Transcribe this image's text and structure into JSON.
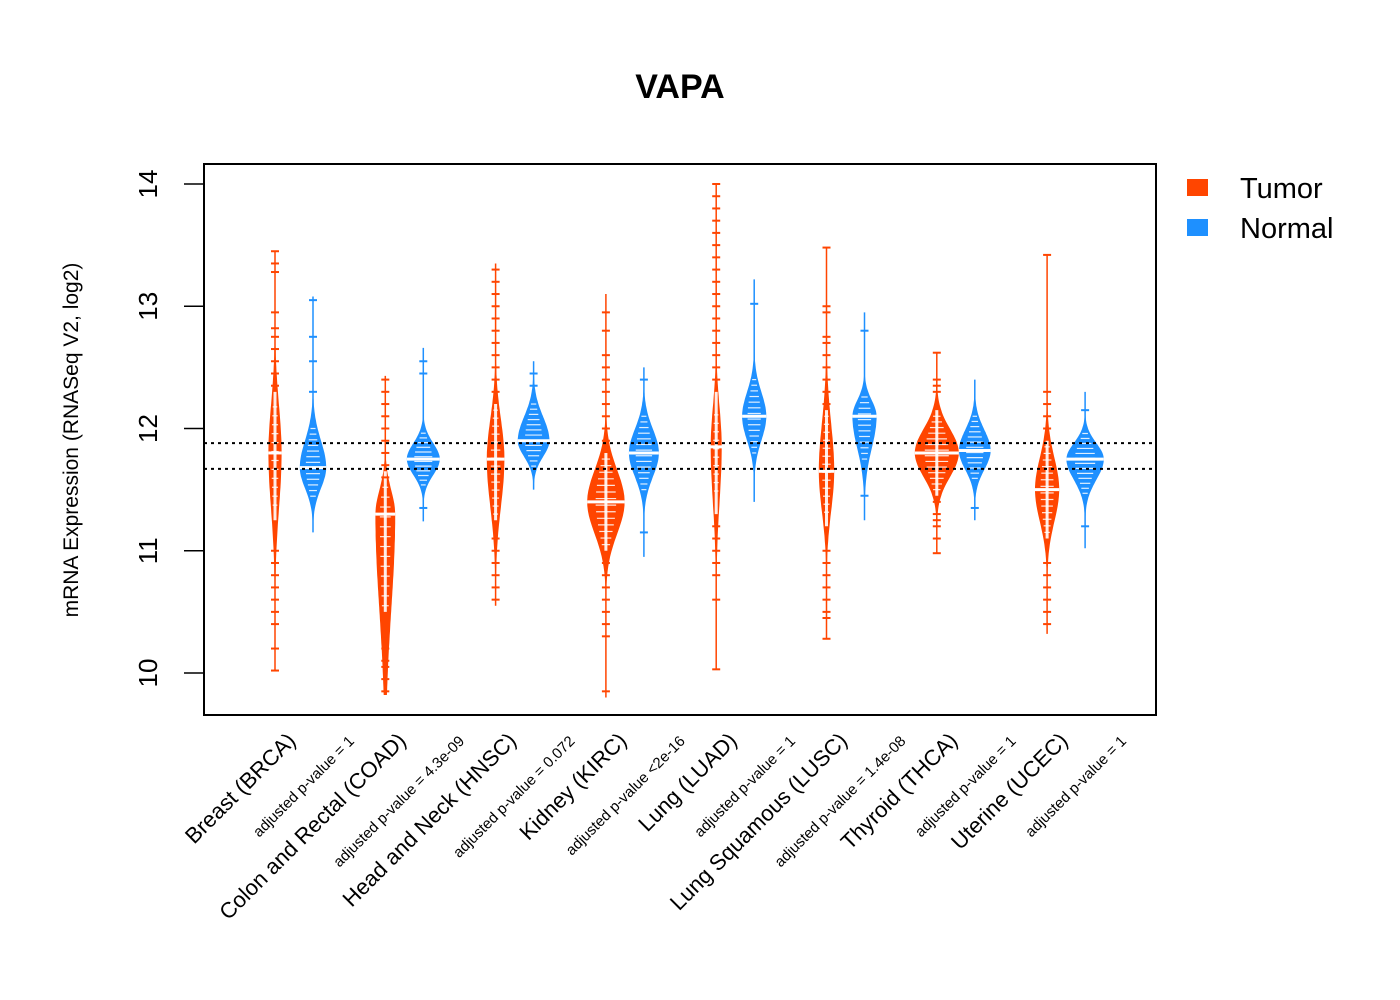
{
  "chart_data": {
    "type": "violin",
    "title": "VAPA",
    "xlabel": "",
    "ylabel": "mRNA Expression (RNASeq V2, log2)",
    "ylim": [
      9.67,
      14.16
    ],
    "yticks": [
      10,
      11,
      12,
      13,
      14
    ],
    "grid": false,
    "reference_lines": [
      11.88,
      11.67
    ],
    "legend": {
      "position": "top-right-outside",
      "entries": [
        {
          "label": "Tumor",
          "color": "#FF4500"
        },
        {
          "label": "Normal",
          "color": "#1E90FF"
        }
      ]
    },
    "categories": [
      {
        "name": "Breast (BRCA)",
        "pvalue_label": "adjusted p-value = 1"
      },
      {
        "name": "Colon and Rectal (COAD)",
        "pvalue_label": "adjusted p-value = 4.3e-09"
      },
      {
        "name": "Head and Neck (HNSC)",
        "pvalue_label": "adjusted p-value = 0.072"
      },
      {
        "name": "Kidney (KIRC)",
        "pvalue_label": "adjusted p-value <2e-16"
      },
      {
        "name": "Lung (LUAD)",
        "pvalue_label": "adjusted p-value = 1"
      },
      {
        "name": "Lung Squamous (LUSC)",
        "pvalue_label": "adjusted p-value = 1.4e-08"
      },
      {
        "name": "Thyroid (THCA)",
        "pvalue_label": "adjusted p-value = 1"
      },
      {
        "name": "Uterine (UCEC)",
        "pvalue_label": "adjusted p-value = 1"
      }
    ],
    "series": [
      {
        "name": "Tumor",
        "color": "#FF4500",
        "distributions": [
          {
            "min": 10.02,
            "max": 13.45,
            "median": 11.8,
            "q1": 11.45,
            "q3": 12.1,
            "peak_density": 0.3,
            "outliers": [
              13.45,
              13.35,
              13.28,
              12.95,
              12.82,
              12.75,
              12.65,
              12.55,
              12.45,
              12.35,
              11.0,
              10.9,
              10.8,
              10.7,
              10.6,
              10.5,
              10.4,
              10.2,
              10.02
            ]
          },
          {
            "min": 9.82,
            "max": 12.43,
            "median": 11.3,
            "q1": 10.7,
            "q3": 11.45,
            "peak_density": 0.45,
            "outliers": [
              12.4,
              12.3,
              12.2,
              12.1,
              12.0,
              11.9,
              11.8,
              11.7,
              11.6,
              10.3,
              10.2,
              10.1,
              10.05,
              9.95,
              9.85
            ]
          },
          {
            "min": 10.55,
            "max": 13.35,
            "median": 11.75,
            "q1": 11.45,
            "q3": 12.0,
            "peak_density": 0.4,
            "outliers": [
              13.3,
              13.2,
              13.1,
              13.0,
              12.9,
              12.8,
              12.7,
              12.6,
              12.5,
              12.4,
              12.3,
              11.1,
              11.0,
              10.9,
              10.8,
              10.7,
              10.6
            ]
          },
          {
            "min": 9.8,
            "max": 13.1,
            "median": 11.4,
            "q1": 11.2,
            "q3": 11.6,
            "peak_density": 0.85,
            "outliers": [
              12.95,
              12.8,
              12.6,
              12.5,
              12.4,
              12.3,
              12.2,
              12.1,
              12.0,
              11.9,
              10.9,
              10.8,
              10.7,
              10.6,
              10.5,
              10.4,
              10.3,
              9.85
            ]
          },
          {
            "min": 10.03,
            "max": 14.0,
            "median": 11.85,
            "q1": 11.5,
            "q3": 12.1,
            "peak_density": 0.25,
            "outliers": [
              14.0,
              13.9,
              13.8,
              13.7,
              13.6,
              13.5,
              13.4,
              13.3,
              13.2,
              13.1,
              13.0,
              12.9,
              12.8,
              12.7,
              12.6,
              12.5,
              12.4,
              11.2,
              11.1,
              11.0,
              10.9,
              10.8,
              10.6,
              10.03
            ]
          },
          {
            "min": 10.28,
            "max": 13.48,
            "median": 11.65,
            "q1": 11.4,
            "q3": 11.95,
            "peak_density": 0.35,
            "outliers": [
              13.48,
              13.0,
              12.95,
              12.75,
              12.7,
              12.6,
              12.5,
              12.4,
              12.3,
              12.2,
              11.0,
              10.9,
              10.8,
              10.7,
              10.6,
              10.5,
              10.45,
              10.28
            ]
          },
          {
            "min": 10.98,
            "max": 12.62,
            "median": 11.8,
            "q1": 11.65,
            "q3": 11.95,
            "peak_density": 1.0,
            "outliers": [
              12.62,
              12.4,
              12.35,
              12.3,
              11.4,
              11.3,
              11.25,
              11.2,
              11.1,
              10.98
            ]
          },
          {
            "min": 10.32,
            "max": 13.42,
            "median": 11.5,
            "q1": 11.3,
            "q3": 11.7,
            "peak_density": 0.55,
            "outliers": [
              13.42,
              12.3,
              12.2,
              12.1,
              12.0,
              10.9,
              10.8,
              10.7,
              10.6,
              10.5,
              10.4
            ]
          }
        ]
      },
      {
        "name": "Normal",
        "color": "#1E90FF",
        "distributions": [
          {
            "min": 11.15,
            "max": 13.08,
            "median": 11.68,
            "q1": 11.55,
            "q3": 11.85,
            "peak_density": 0.6,
            "outliers": [
              13.05,
              12.75,
              12.55,
              12.3
            ]
          },
          {
            "min": 11.24,
            "max": 12.66,
            "median": 11.75,
            "q1": 11.65,
            "q3": 11.85,
            "peak_density": 0.75,
            "outliers": [
              12.55,
              12.45,
              11.35
            ]
          },
          {
            "min": 11.5,
            "max": 12.55,
            "median": 11.9,
            "q1": 11.8,
            "q3": 12.05,
            "peak_density": 0.72,
            "outliers": [
              12.45,
              12.35
            ]
          },
          {
            "min": 10.95,
            "max": 12.5,
            "median": 11.8,
            "q1": 11.65,
            "q3": 11.95,
            "peak_density": 0.68,
            "outliers": [
              12.4,
              11.15
            ]
          },
          {
            "min": 11.4,
            "max": 13.22,
            "median": 12.1,
            "q1": 11.95,
            "q3": 12.25,
            "peak_density": 0.55,
            "outliers": [
              13.02
            ]
          },
          {
            "min": 11.25,
            "max": 12.95,
            "median": 12.1,
            "q1": 11.9,
            "q3": 12.2,
            "peak_density": 0.55,
            "outliers": [
              12.8,
              11.45
            ]
          },
          {
            "min": 11.25,
            "max": 12.4,
            "median": 11.82,
            "q1": 11.7,
            "q3": 11.95,
            "peak_density": 0.72,
            "outliers": [
              11.35
            ]
          },
          {
            "min": 11.02,
            "max": 12.3,
            "median": 11.75,
            "q1": 11.62,
            "q3": 11.85,
            "peak_density": 0.85,
            "outliers": [
              12.15,
              11.2
            ]
          }
        ]
      }
    ]
  }
}
